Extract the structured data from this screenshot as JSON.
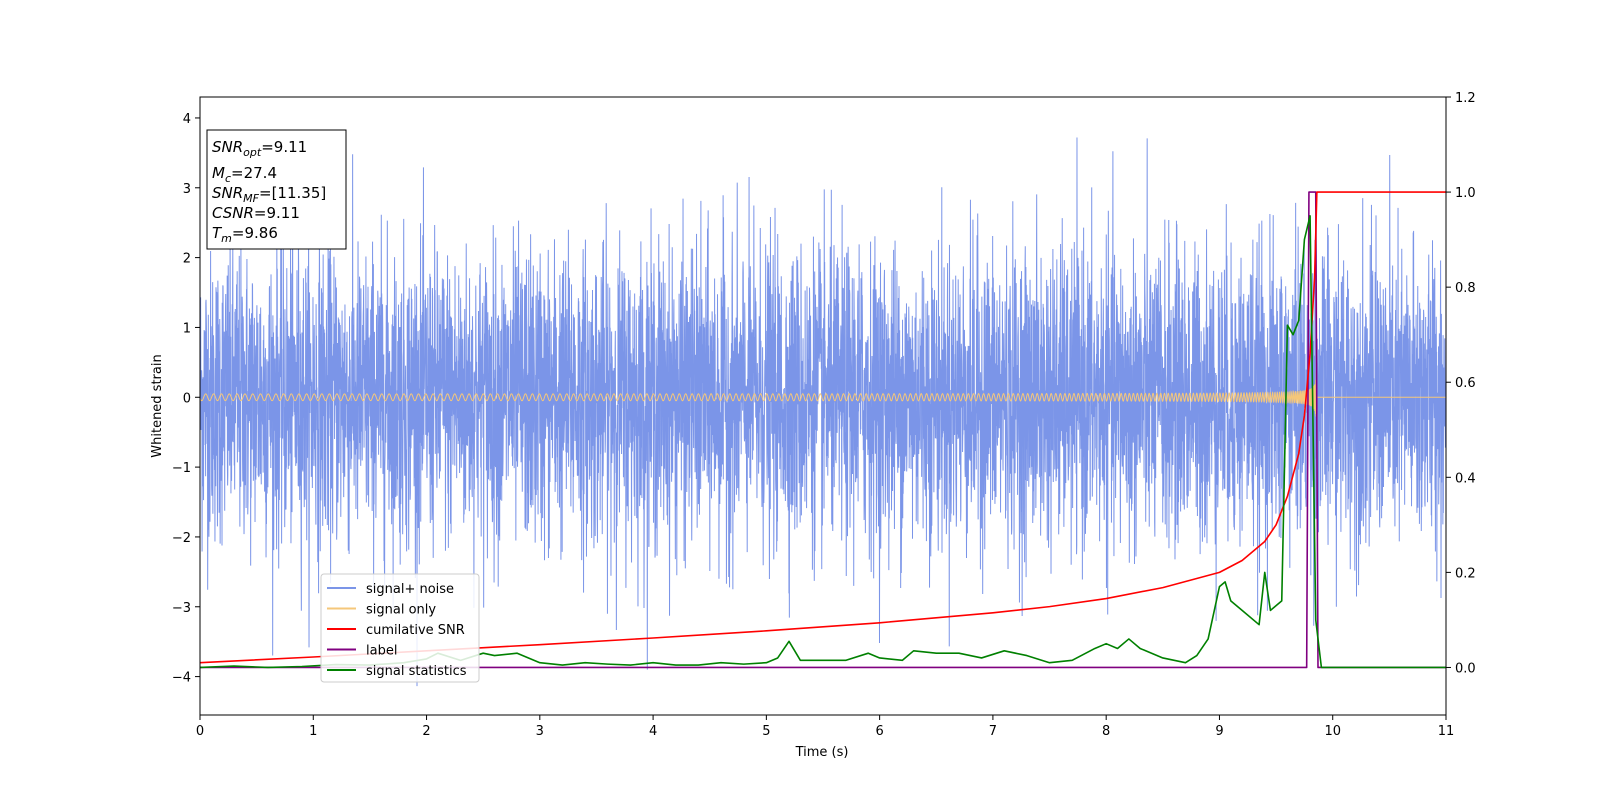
{
  "chart_data": {
    "type": "line",
    "xlabel": "Time (s)",
    "ylabel": "Whitened strain",
    "xlim": [
      0,
      11
    ],
    "ylim_left": [
      -4.55,
      4.3
    ],
    "ylim_right": [
      -0.1,
      1.2
    ],
    "xticks": [
      "0",
      "1",
      "2",
      "3",
      "4",
      "5",
      "6",
      "7",
      "8",
      "9",
      "10",
      "11"
    ],
    "yticks_left": [
      "4",
      "3",
      "2",
      "1",
      "0",
      "−1",
      "−2",
      "−3",
      "−4"
    ],
    "yticks_right": [
      "1.2",
      "1.0",
      "0.8",
      "0.6",
      "0.4",
      "0.2",
      "0.0"
    ],
    "grid": false,
    "legend_position": "lower-left",
    "annotation": [
      {
        "main": "SNR",
        "sub": "opt",
        "rest": "=9.11"
      },
      {
        "main": "M",
        "sub": "c",
        "rest": "=27.4"
      },
      {
        "main": "SNR",
        "sub": "MF",
        "rest": "=[11.35]"
      },
      {
        "main": "CSNR",
        "sub": "",
        "rest": "=9.11"
      },
      {
        "main": "T",
        "sub": "m",
        "rest": "=9.86"
      }
    ],
    "series": [
      {
        "name": "signal+ noise",
        "axis": "left",
        "color": "#7b95e8",
        "description": "whitened noisy strain, amplitude roughly ±3.9 about 0 over 0–11 s"
      },
      {
        "name": "signal only",
        "axis": "left",
        "color": "#f5c77a",
        "description": "chirp waveform, amplitude growing to ~0.6 near merger at 9.86 s, zero after"
      },
      {
        "name": "cumilative SNR",
        "axis": "right",
        "color": "#ff0000",
        "x": [
          0,
          1,
          2,
          3,
          4,
          5,
          6,
          7,
          7.5,
          8,
          8.5,
          9,
          9.2,
          9.4,
          9.5,
          9.6,
          9.7,
          9.75,
          9.8,
          9.84,
          9.86,
          11
        ],
        "y": [
          0.01,
          0.022,
          0.035,
          0.048,
          0.062,
          0.077,
          0.094,
          0.115,
          0.128,
          0.145,
          0.168,
          0.2,
          0.225,
          0.265,
          0.3,
          0.36,
          0.45,
          0.53,
          0.66,
          0.82,
          1.0,
          1.0
        ]
      },
      {
        "name": "label",
        "axis": "right",
        "color": "#800080",
        "x": [
          0,
          9.77,
          9.79,
          9.85,
          9.87,
          11
        ],
        "y": [
          0,
          0,
          1.0,
          1.0,
          0,
          0
        ]
      },
      {
        "name": "signal statistics",
        "axis": "right",
        "color": "#008000",
        "x": [
          0,
          0.3,
          0.6,
          0.9,
          1.2,
          1.5,
          1.8,
          2.0,
          2.1,
          2.3,
          2.5,
          2.6,
          2.8,
          2.9,
          3.0,
          3.2,
          3.4,
          3.6,
          3.8,
          4.0,
          4.2,
          4.4,
          4.6,
          4.8,
          5.0,
          5.1,
          5.2,
          5.3,
          5.5,
          5.7,
          5.9,
          6.0,
          6.2,
          6.3,
          6.5,
          6.7,
          6.9,
          7.1,
          7.3,
          7.5,
          7.7,
          7.9,
          8.0,
          8.1,
          8.2,
          8.3,
          8.5,
          8.7,
          8.8,
          8.9,
          9.0,
          9.05,
          9.1,
          9.2,
          9.35,
          9.4,
          9.45,
          9.5,
          9.55,
          9.6,
          9.65,
          9.7,
          9.75,
          9.8,
          9.85,
          9.9,
          10.0,
          10.5,
          11
        ],
        "y": [
          0.0,
          0.003,
          0.0,
          0.002,
          0.006,
          0.005,
          0.01,
          0.018,
          0.03,
          0.015,
          0.03,
          0.025,
          0.03,
          0.02,
          0.01,
          0.005,
          0.01,
          0.007,
          0.005,
          0.01,
          0.005,
          0.005,
          0.01,
          0.007,
          0.01,
          0.02,
          0.055,
          0.015,
          0.015,
          0.015,
          0.03,
          0.02,
          0.015,
          0.035,
          0.03,
          0.03,
          0.02,
          0.035,
          0.025,
          0.01,
          0.015,
          0.04,
          0.05,
          0.04,
          0.06,
          0.04,
          0.02,
          0.01,
          0.025,
          0.06,
          0.17,
          0.18,
          0.14,
          0.12,
          0.09,
          0.2,
          0.12,
          0.13,
          0.14,
          0.72,
          0.7,
          0.73,
          0.9,
          0.95,
          0.1,
          0.0,
          0.0,
          0.0,
          0.0
        ]
      }
    ]
  }
}
